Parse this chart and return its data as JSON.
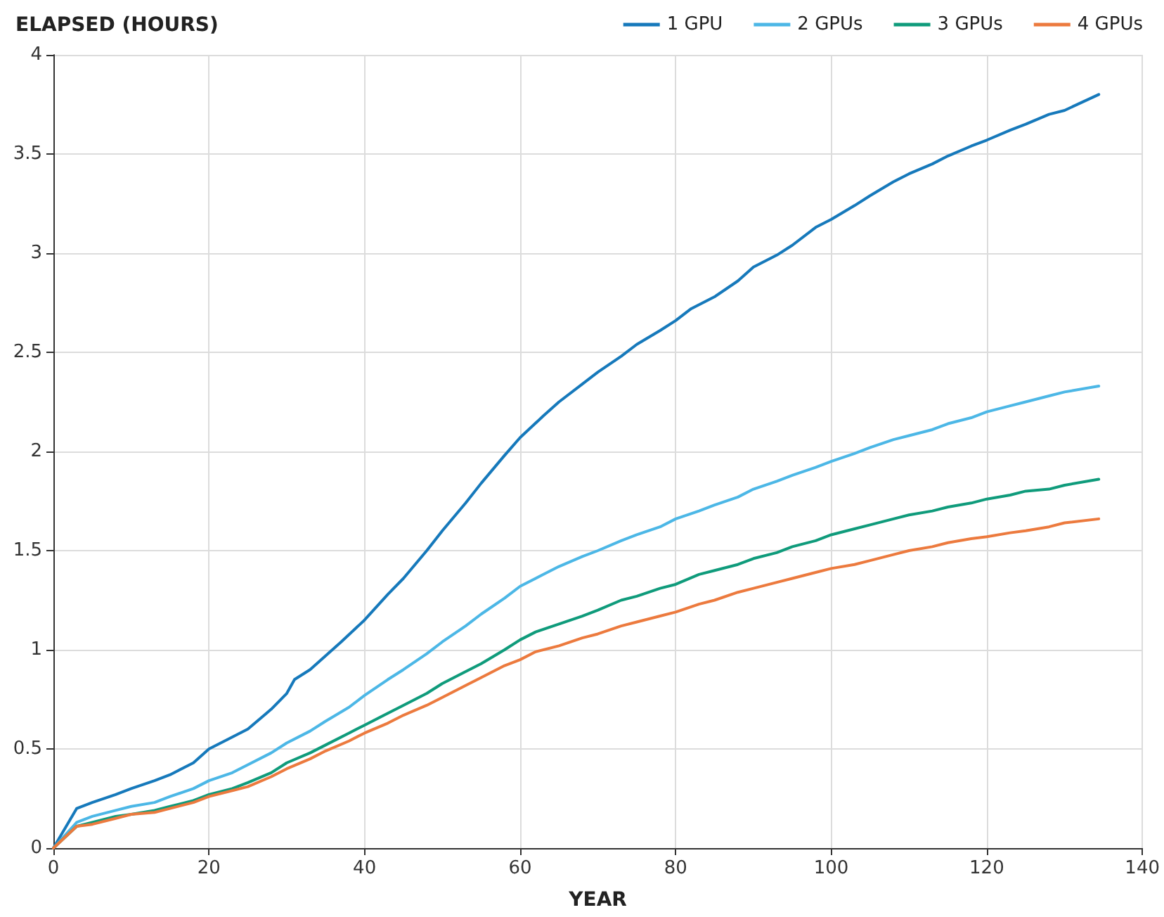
{
  "chart_data": {
    "type": "line",
    "title": "ELAPSED (HOURS)",
    "xlabel": "YEAR",
    "xlim": [
      0,
      140
    ],
    "xticks": [
      0,
      20,
      40,
      60,
      80,
      100,
      120,
      140
    ],
    "ylim": [
      0,
      4
    ],
    "yticks": [
      0,
      0.5,
      1,
      1.5,
      2,
      2.5,
      3,
      3.5,
      4
    ],
    "grid": true,
    "legend": "top right",
    "marker": "none",
    "line_style": "solid",
    "series": [
      {
        "name": "1 GPU",
        "color": "#1679bb",
        "x": [
          0,
          3,
          5,
          8,
          10,
          13,
          15,
          18,
          20,
          22,
          25,
          28,
          30,
          31,
          33,
          35,
          37,
          40,
          43,
          45,
          48,
          50,
          53,
          55,
          58,
          60,
          63,
          65,
          68,
          70,
          73,
          75,
          78,
          80,
          82,
          85,
          88,
          90,
          93,
          95,
          98,
          100,
          103,
          105,
          108,
          110,
          113,
          115,
          118,
          120,
          123,
          125,
          128,
          130,
          134.4
        ],
        "values": [
          0,
          0.2,
          0.23,
          0.27,
          0.3,
          0.34,
          0.37,
          0.43,
          0.5,
          0.54,
          0.6,
          0.7,
          0.78,
          0.85,
          0.9,
          0.97,
          1.04,
          1.15,
          1.28,
          1.36,
          1.5,
          1.6,
          1.74,
          1.84,
          1.98,
          2.07,
          2.18,
          2.25,
          2.34,
          2.4,
          2.48,
          2.54,
          2.61,
          2.66,
          2.72,
          2.78,
          2.86,
          2.93,
          2.99,
          3.04,
          3.13,
          3.17,
          3.24,
          3.29,
          3.36,
          3.4,
          3.45,
          3.49,
          3.54,
          3.57,
          3.62,
          3.65,
          3.7,
          3.72,
          3.8
        ]
      },
      {
        "name": "2 GPUs",
        "color": "#4cb7e6",
        "x": [
          0,
          3,
          5,
          8,
          10,
          13,
          15,
          18,
          20,
          23,
          25,
          28,
          30,
          33,
          35,
          38,
          40,
          43,
          45,
          48,
          50,
          53,
          55,
          58,
          60,
          63,
          65,
          68,
          70,
          73,
          75,
          78,
          80,
          83,
          85,
          88,
          90,
          93,
          95,
          98,
          100,
          103,
          105,
          108,
          110,
          113,
          115,
          118,
          120,
          123,
          125,
          128,
          130,
          134.4
        ],
        "values": [
          0,
          0.13,
          0.16,
          0.19,
          0.21,
          0.23,
          0.26,
          0.3,
          0.34,
          0.38,
          0.42,
          0.48,
          0.53,
          0.59,
          0.64,
          0.71,
          0.77,
          0.85,
          0.9,
          0.98,
          1.04,
          1.12,
          1.18,
          1.26,
          1.32,
          1.38,
          1.42,
          1.47,
          1.5,
          1.55,
          1.58,
          1.62,
          1.66,
          1.7,
          1.73,
          1.77,
          1.81,
          1.85,
          1.88,
          1.92,
          1.95,
          1.99,
          2.02,
          2.06,
          2.08,
          2.11,
          2.14,
          2.17,
          2.2,
          2.23,
          2.25,
          2.28,
          2.3,
          2.33
        ]
      },
      {
        "name": "3 GPUs",
        "color": "#0f9b7b",
        "x": [
          0,
          3,
          5,
          8,
          10,
          13,
          15,
          18,
          20,
          23,
          25,
          28,
          30,
          33,
          35,
          38,
          40,
          43,
          45,
          48,
          50,
          53,
          55,
          58,
          60,
          62,
          65,
          68,
          70,
          73,
          75,
          78,
          80,
          83,
          85,
          88,
          90,
          93,
          95,
          98,
          100,
          103,
          105,
          108,
          110,
          113,
          115,
          118,
          120,
          123,
          125,
          128,
          130,
          134.4
        ],
        "values": [
          0,
          0.11,
          0.13,
          0.16,
          0.17,
          0.19,
          0.21,
          0.24,
          0.27,
          0.3,
          0.33,
          0.38,
          0.43,
          0.48,
          0.52,
          0.58,
          0.62,
          0.68,
          0.72,
          0.78,
          0.83,
          0.89,
          0.93,
          1,
          1.05,
          1.09,
          1.13,
          1.17,
          1.2,
          1.25,
          1.27,
          1.31,
          1.33,
          1.38,
          1.4,
          1.43,
          1.46,
          1.49,
          1.52,
          1.55,
          1.58,
          1.61,
          1.63,
          1.66,
          1.68,
          1.7,
          1.72,
          1.74,
          1.76,
          1.78,
          1.8,
          1.81,
          1.83,
          1.86
        ]
      },
      {
        "name": "4 GPUs",
        "color": "#ec7a3e",
        "x": [
          0,
          3,
          5,
          8,
          10,
          13,
          15,
          18,
          20,
          23,
          25,
          28,
          30,
          33,
          35,
          38,
          40,
          43,
          45,
          48,
          50,
          53,
          55,
          58,
          60,
          62,
          65,
          68,
          70,
          73,
          75,
          78,
          80,
          83,
          85,
          88,
          90,
          93,
          95,
          98,
          100,
          103,
          105,
          108,
          110,
          113,
          115,
          118,
          120,
          123,
          125,
          128,
          130,
          134.4
        ],
        "values": [
          0,
          0.11,
          0.12,
          0.15,
          0.17,
          0.18,
          0.2,
          0.23,
          0.26,
          0.29,
          0.31,
          0.36,
          0.4,
          0.45,
          0.49,
          0.54,
          0.58,
          0.63,
          0.67,
          0.72,
          0.76,
          0.82,
          0.86,
          0.92,
          0.95,
          0.99,
          1.02,
          1.06,
          1.08,
          1.12,
          1.14,
          1.17,
          1.19,
          1.23,
          1.25,
          1.29,
          1.31,
          1.34,
          1.36,
          1.39,
          1.41,
          1.43,
          1.45,
          1.48,
          1.5,
          1.52,
          1.54,
          1.56,
          1.57,
          1.59,
          1.6,
          1.62,
          1.64,
          1.66
        ]
      }
    ]
  }
}
